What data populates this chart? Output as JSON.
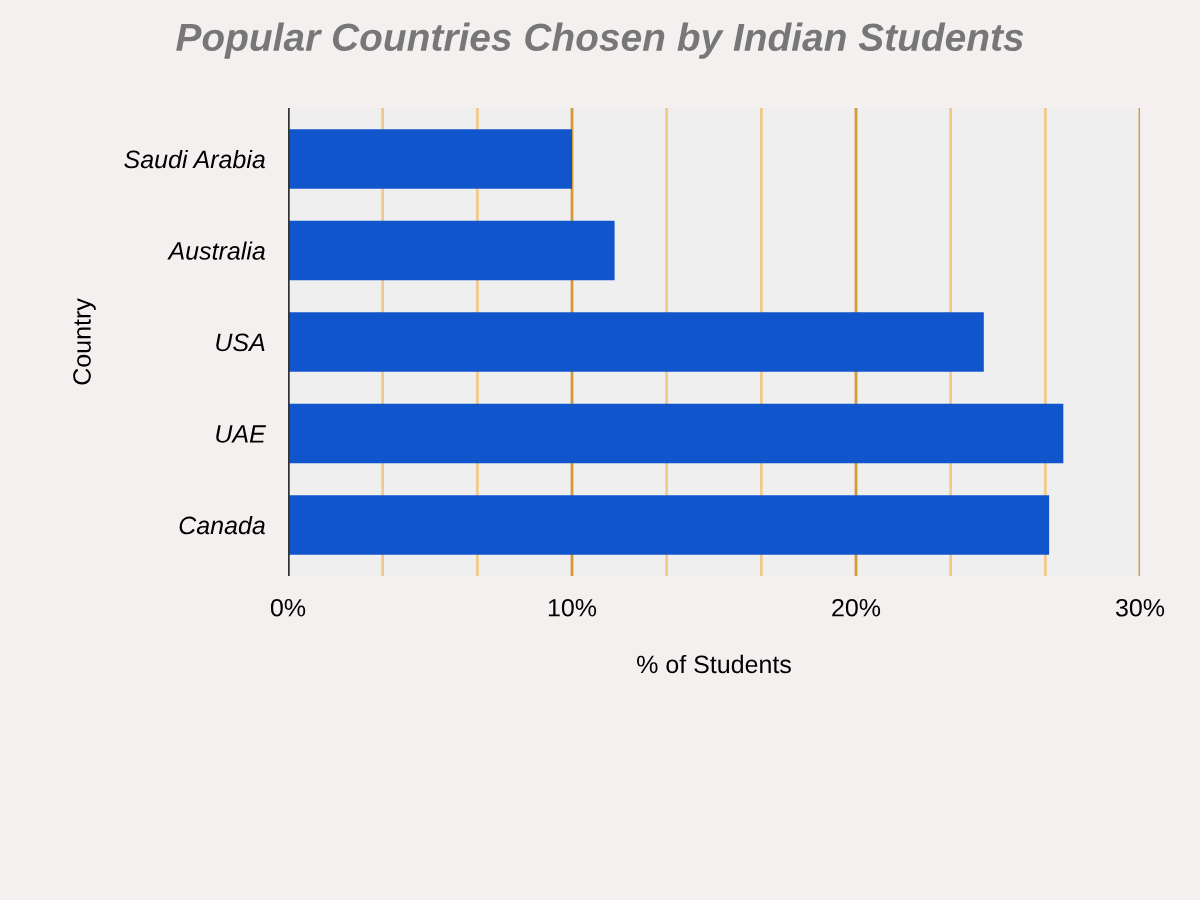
{
  "chart_data": {
    "type": "bar",
    "orientation": "horizontal",
    "title": "Popular Countries Chosen by Indian Students",
    "xlabel": "% of Students",
    "ylabel": "Country",
    "categories": [
      "Saudi Arabia",
      "Australia",
      "USA",
      "UAE",
      "Canada"
    ],
    "values": [
      10,
      11.5,
      24.5,
      27.3,
      26.8
    ],
    "color": "#1155cc",
    "xlim": [
      0,
      30
    ],
    "xticks": [
      {
        "value": 0,
        "label": "0%"
      },
      {
        "value": 3.333,
        "label": null
      },
      {
        "value": 6.667,
        "label": null
      },
      {
        "value": 10,
        "label": "10%"
      },
      {
        "value": 13.333,
        "label": null
      },
      {
        "value": 16.667,
        "label": null
      },
      {
        "value": 20,
        "label": "20%"
      },
      {
        "value": 23.333,
        "label": null
      },
      {
        "value": 26.667,
        "label": null
      },
      {
        "value": 30,
        "label": "30%"
      }
    ],
    "grid": "x",
    "legend": false
  }
}
